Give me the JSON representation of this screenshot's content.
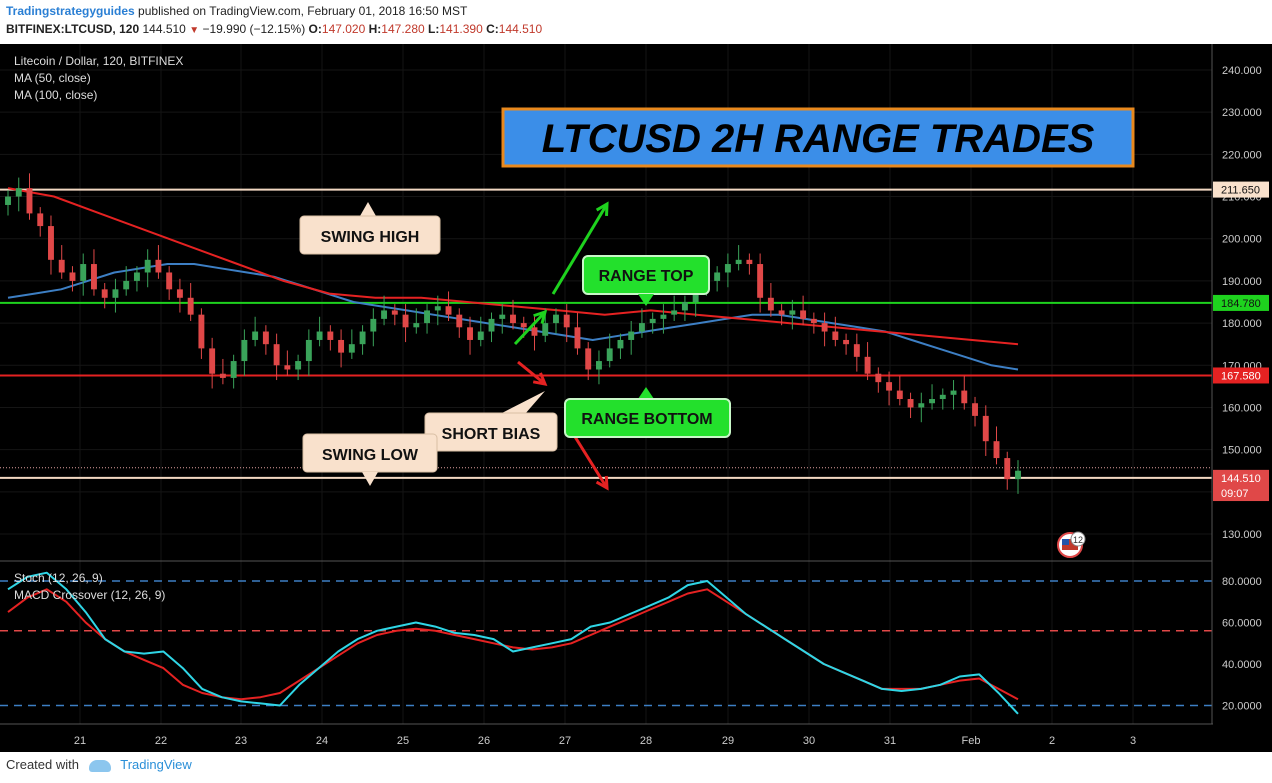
{
  "header": {
    "author": "Tradingstrategyguides",
    "published": "published on TradingView.com, February 01, 2018 16:50 MST",
    "symbol": "BITFINEX:LTCUSD, 120",
    "last": "144.510",
    "change": "−19.990 (−12.15%)",
    "open_label": "O:",
    "open": "147.020",
    "high_label": "H:",
    "high": "147.280",
    "low_label": "L:",
    "low": "141.390",
    "close_label": "C:",
    "close": "144.510"
  },
  "legend": {
    "title": "Litecoin / Dollar, 120, BITFINEX",
    "ma50": "MA (50, close)",
    "ma100": "MA (100, close)",
    "stoch": "Stoch (12, 26, 9)",
    "macd": "MACD Crossover (12, 26, 9)"
  },
  "annotations": {
    "banner": "LTCUSD 2H RANGE TRADES",
    "swing_high": "SWING HIGH",
    "swing_low": "SWING LOW",
    "range_top": "RANGE TOP",
    "range_bottom": "RANGE BOTTOM",
    "short_bias": "SHORT BIAS"
  },
  "footer": {
    "created_with": "Created with",
    "brand": "TradingView"
  },
  "colors": {
    "background": "#000000",
    "up": "#3aa35a",
    "down": "#e04848",
    "ma50": "#3d7fc4",
    "ma100": "#e52222",
    "range_top": "#1ed21e",
    "range_bottom": "#e52222",
    "swing": "#f2d8c2",
    "stoch_k": "#2fd6e6",
    "stoch_d": "#e52222",
    "banner_bg": "#3b8ee8",
    "banner_border": "#e8891e"
  },
  "chart_data": [
    {
      "type": "candlestick",
      "title": "Litecoin / Dollar, 120, BITFINEX",
      "x_ticks": [
        "21",
        "22",
        "23",
        "24",
        "25",
        "26",
        "27",
        "28",
        "29",
        "30",
        "31",
        "Feb",
        "2",
        "3"
      ],
      "y_ticks": [
        "240.000",
        "230.000",
        "220.000",
        "210.000",
        "200.000",
        "190.000",
        "180.000",
        "170.000",
        "160.000",
        "150.000",
        "140.000",
        "130.000"
      ],
      "ylim": [
        125,
        245
      ],
      "price_labels": [
        "211.650",
        "184.780",
        "167.580",
        "144.510",
        "09:07"
      ],
      "levels": [
        {
          "name": "SWING HIGH",
          "value": 211.65
        },
        {
          "name": "RANGE TOP",
          "value": 184.78
        },
        {
          "name": "RANGE BOTTOM",
          "value": 167.58
        },
        {
          "name": "SWING LOW",
          "value": 143.3
        }
      ],
      "close_series": [
        210,
        212,
        206,
        203,
        195,
        192,
        190,
        194,
        188,
        186,
        188,
        190,
        192,
        195,
        192,
        188,
        186,
        182,
        174,
        168,
        167,
        171,
        176,
        178,
        175,
        170,
        169,
        171,
        176,
        178,
        176,
        173,
        175,
        178,
        181,
        183,
        182,
        179,
        180,
        183,
        184,
        182,
        179,
        176,
        178,
        181,
        182,
        180,
        179,
        177,
        180,
        182,
        179,
        174,
        169,
        171,
        174,
        176,
        178,
        180,
        181,
        182,
        183,
        185,
        188,
        190,
        192,
        194,
        195,
        194,
        186,
        183,
        182,
        183,
        181,
        180,
        178,
        176,
        175,
        172,
        168,
        166,
        164,
        162,
        160,
        161,
        162,
        163,
        164,
        161,
        158,
        152,
        148,
        143,
        145
      ],
      "ma50": [
        186,
        187,
        188,
        190,
        192,
        193,
        194,
        194,
        193,
        192,
        191,
        189,
        187,
        185,
        184,
        183,
        182,
        181,
        180,
        179,
        178,
        177,
        176,
        177,
        178,
        179,
        180,
        181,
        182,
        182,
        181,
        180,
        179,
        178,
        176,
        174,
        172,
        170,
        169
      ],
      "ma100": [
        212,
        210,
        206,
        202,
        198,
        194,
        190,
        187,
        186,
        186,
        185,
        184,
        183,
        182,
        183,
        182,
        181,
        180,
        179,
        178,
        177,
        176,
        175
      ]
    },
    {
      "type": "line",
      "y_ticks": [
        "80.0000",
        "60.0000",
        "40.0000",
        "20.0000"
      ],
      "ylim": [
        10,
        88
      ],
      "levels": [
        80,
        56,
        20
      ],
      "series": [
        {
          "values": [
            76,
            82,
            84,
            76,
            65,
            52,
            46,
            45,
            46,
            38,
            28,
            24,
            22,
            21,
            20,
            30,
            38,
            46,
            52,
            56,
            58,
            60,
            58,
            55,
            54,
            52,
            46,
            48,
            50,
            52,
            58,
            60,
            64,
            68,
            72,
            78,
            80,
            72,
            64,
            58,
            52,
            46,
            40,
            36,
            32,
            28,
            27,
            28,
            30,
            34,
            35,
            26,
            16
          ]
        },
        {
          "values": [
            65,
            72,
            76,
            70,
            60,
            52,
            46,
            42,
            38,
            30,
            26,
            24,
            23,
            24,
            26,
            32,
            38,
            44,
            50,
            54,
            56,
            57,
            56,
            54,
            52,
            50,
            48,
            47,
            48,
            50,
            54,
            58,
            62,
            66,
            70,
            74,
            76,
            70,
            64,
            58,
            52,
            46,
            40,
            36,
            32,
            28,
            28,
            28,
            30,
            32,
            33,
            28,
            23
          ]
        }
      ]
    }
  ]
}
